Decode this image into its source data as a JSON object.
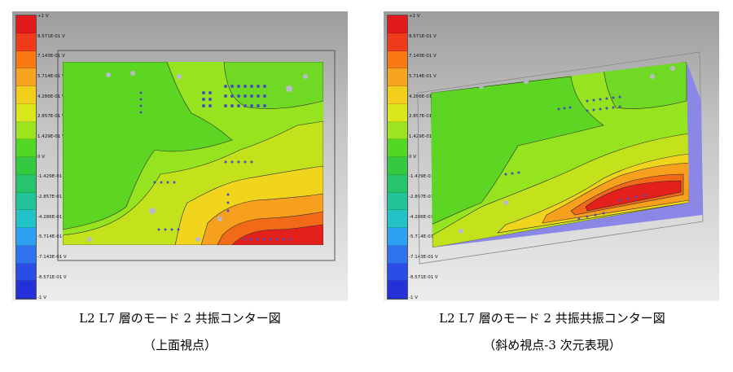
{
  "colors": {
    "scale": [
      "#e31a1c",
      "#ef3b1c",
      "#f97a14",
      "#f7a51e",
      "#f2cf1c",
      "#d8e81c",
      "#9be41f",
      "#52d823",
      "#36c841",
      "#27c46c",
      "#23c49a",
      "#22c2c7",
      "#2ea2f1",
      "#2f72ee",
      "#2b4ce6",
      "#2431d8"
    ],
    "plane": "#8a87e6"
  },
  "left": {
    "scale_labels": [
      "+1 V",
      "8.571E-01 V",
      "7.143E-01 V",
      "5.714E-01 V",
      "4.286E-01 V",
      "2.857E-01 V",
      "1.429E-01 V",
      "0 V",
      "-1.429E-01 V",
      "-2.857E-01 V",
      "-4.286E-01 V",
      "-5.714E-01 V",
      "-7.143E-01 V",
      "-8.571E-01 V",
      "-1 V"
    ],
    "caption_title": "L2 L7 層のモード 2 共振コンター図",
    "caption_sub": "（上面視点）"
  },
  "right": {
    "scale_labels": [
      "+1 V",
      "8.571E-01 V",
      "7.143E-01 V",
      "5.714E-01 V",
      "4.286E-01 V",
      "2.857E-01 V",
      "1.429E-01 V",
      "0 V",
      "-1.429E-01 V",
      "-2.857E-01 V",
      "-4.286E-01 V",
      "-5.714E-01 V",
      "-7.143E-01 V",
      "-8.571E-01 V",
      "-1 V"
    ],
    "caption_title": "L2 L7 層のモード 2 共振共振コンター図",
    "caption_sub": "（斜め視点-3 次元表現）"
  }
}
